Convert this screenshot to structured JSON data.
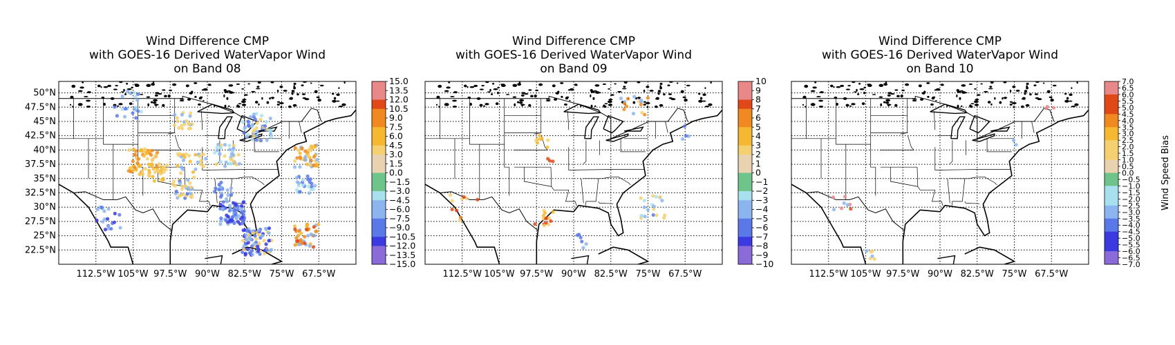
{
  "colors": {
    "scale": [
      "#8a6bd8",
      "#3a3ae0",
      "#5a78e8",
      "#8cb4ee",
      "#a8e0ee",
      "#6fc48c",
      "#e8d2b0",
      "#f5d070",
      "#f5b830",
      "#f08a20",
      "#e04818",
      "#e88888"
    ],
    "map_lines": "#000000",
    "grid": "#000000"
  },
  "panels": [
    {
      "title_lines": [
        "Wind Difference CMP",
        "with GOES-16 Derived WaterVapor Wind",
        "on Band 08"
      ],
      "lat_labels": [
        "50°N",
        "47.5°N",
        "45°N",
        "42.5°N",
        "40°N",
        "37.5°N",
        "35°N",
        "32.5°N",
        "30°N",
        "27.5°N",
        "25°N",
        "22.5°N"
      ],
      "lon_labels": [
        "112.5°W",
        "105°W",
        "97.5°W",
        "90°W",
        "82.5°W",
        "75°W",
        "67.5°W"
      ],
      "colorbar_ticks": [
        "15.0",
        "13.5",
        "12.0",
        "10.5",
        "9.0",
        "7.5",
        "6.0",
        "4.5",
        "3.0",
        "1.5",
        "0.0",
        "−1.5",
        "−3.0",
        "−4.5",
        "−6.0",
        "−7.5",
        "−9.0",
        "−10.5",
        "−12.0",
        "−13.5",
        "−15.0"
      ],
      "colorbar_label": "",
      "density": "high"
    },
    {
      "title_lines": [
        "Wind Difference CMP",
        "with GOES-16 Derived WaterVapor Wind",
        "on Band 09"
      ],
      "lat_labels": [],
      "lon_labels": [
        "112.5°W",
        "105°W",
        "97.5°W",
        "90°W",
        "82.5°W",
        "75°W",
        "67.5°W"
      ],
      "colorbar_ticks": [
        "10",
        "9",
        "8",
        "7",
        "6",
        "5",
        "4",
        "3",
        "2",
        "1",
        "0",
        "−1",
        "−2",
        "−3",
        "−4",
        "−5",
        "−6",
        "−7",
        "−8",
        "−9",
        "−10"
      ],
      "colorbar_label": "",
      "density": "medium"
    },
    {
      "title_lines": [
        "Wind Difference CMP",
        "with GOES-16 Derived WaterVapor Wind",
        "on Band 10"
      ],
      "lat_labels": [],
      "lon_labels": [
        "112.5°W",
        "105°W",
        "97.5°W",
        "90°W",
        "82.5°W",
        "75°W",
        "67.5°W"
      ],
      "colorbar_ticks": [
        "7.0",
        "6.5",
        "6.0",
        "5.5",
        "5.0",
        "4.5",
        "4.0",
        "3.5",
        "3.0",
        "2.5",
        "2.0",
        "1.5",
        "1.0",
        "0.5",
        "0.0",
        "−0.5",
        "−1.0",
        "−1.5",
        "−2.0",
        "−2.5",
        "−3.0",
        "−3.5",
        "−4.0",
        "−4.5",
        "−5.0",
        "−5.5",
        "−6.0",
        "−6.5",
        "−7.0"
      ],
      "colorbar_label": "Wind Speed Bias",
      "density": "low"
    }
  ]
}
